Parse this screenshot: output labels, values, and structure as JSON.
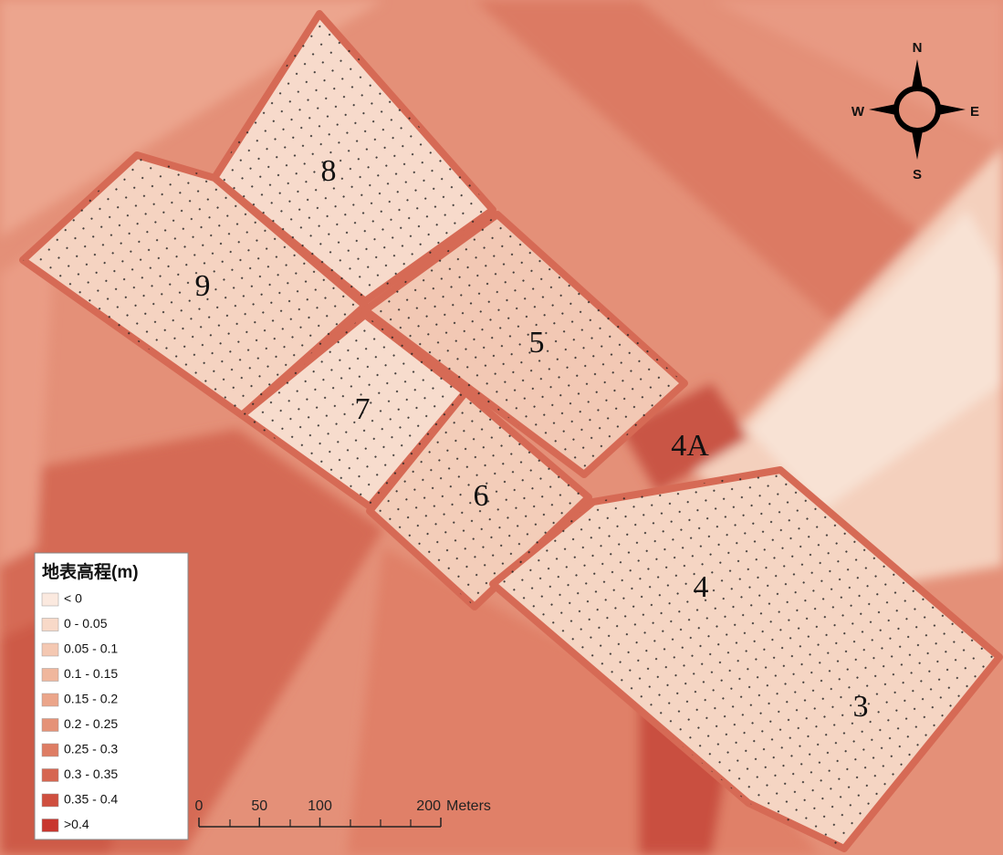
{
  "parcels": [
    "8",
    "9",
    "5",
    "7",
    "4A",
    "6",
    "4",
    "3"
  ],
  "compass": {
    "north": "N",
    "south": "S",
    "east": "E",
    "west": "W"
  },
  "legend": {
    "title": "地表高程(m)",
    "items": [
      {
        "label": "< 0",
        "color": "#fbe9df"
      },
      {
        "label": "0 - 0.05",
        "color": "#f8d9c8"
      },
      {
        "label": "0.05 - 0.1",
        "color": "#f4c8b2"
      },
      {
        "label": "0.1 - 0.15",
        "color": "#f0b79d"
      },
      {
        "label": "0.15 - 0.2",
        "color": "#eba58a"
      },
      {
        "label": "0.2 - 0.25",
        "color": "#e59277"
      },
      {
        "label": "0.25 - 0.3",
        "color": "#de7d64"
      },
      {
        "label": "0.3 - 0.35",
        "color": "#d66651"
      },
      {
        "label": "0.35 - 0.4",
        "color": "#cf4f3f"
      },
      {
        "label": ">0.4",
        "color": "#c8362e"
      }
    ]
  },
  "scale_bar": {
    "ticks": [
      0,
      50,
      100,
      200
    ],
    "unit": "Meters"
  }
}
